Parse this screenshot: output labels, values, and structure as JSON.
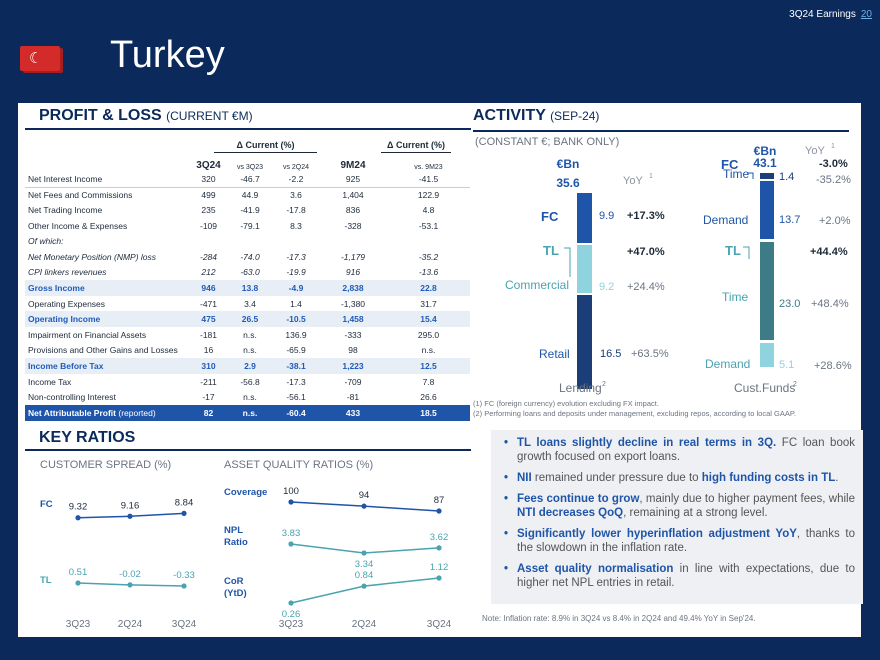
{
  "header": {
    "tag": "3Q24 Earnings",
    "page": "20",
    "title": "Turkey",
    "flag_icon": "turkey-flag-icon"
  },
  "pl": {
    "title": "PROFIT & LOSS",
    "title_sub": "(CURRENT €M)",
    "delta_label": "Δ Current (%)",
    "cols": [
      "3Q24",
      "vs 3Q23",
      "vs 2Q24",
      "9M24",
      "vs. 9M23"
    ],
    "rows": [
      {
        "label": "Net Interest Income",
        "v": [
          "320",
          "-46.7",
          "-2.2",
          "925",
          "-41.5"
        ],
        "style": ""
      },
      {
        "label": "Net Fees and Commissions",
        "v": [
          "499",
          "44.9",
          "3.6",
          "1,404",
          "122.9"
        ],
        "style": ""
      },
      {
        "label": "Net Trading Income",
        "v": [
          "235",
          "-41.9",
          "-17.8",
          "836",
          "4.8"
        ],
        "style": ""
      },
      {
        "label": "Other Income & Expenses",
        "v": [
          "-109",
          "-79.1",
          "8.3",
          "-328",
          "-53.1"
        ],
        "style": ""
      },
      {
        "label": "Of which:",
        "v": [
          "",
          "",
          "",
          "",
          ""
        ],
        "style": "it"
      },
      {
        "label": "Net Monetary Position (NMP) loss",
        "v": [
          "-284",
          "-74.0",
          "-17.3",
          "-1,179",
          "-35.2"
        ],
        "style": "it"
      },
      {
        "label": "CPI linkers revenues",
        "v": [
          "212",
          "-63.0",
          "-19.9",
          "916",
          "-13.6"
        ],
        "style": "it"
      },
      {
        "label": "Gross Income",
        "v": [
          "946",
          "13.8",
          "-4.9",
          "2,838",
          "22.8"
        ],
        "style": "hl"
      },
      {
        "label": "Operating Expenses",
        "v": [
          "-471",
          "3.4",
          "1.4",
          "-1,380",
          "31.7"
        ],
        "style": ""
      },
      {
        "label": "Operating Income",
        "v": [
          "475",
          "26.5",
          "-10.5",
          "1,458",
          "15.4"
        ],
        "style": "hl"
      },
      {
        "label": "Impairment on Financial Assets",
        "v": [
          "-181",
          "n.s.",
          "136.9",
          "-333",
          "295.0"
        ],
        "style": ""
      },
      {
        "label": "Provisions and Other Gains and Losses",
        "v": [
          "16",
          "n.s.",
          "-65.9",
          "98",
          "n.s."
        ],
        "style": ""
      },
      {
        "label": "Income Before Tax",
        "v": [
          "310",
          "2.9",
          "-38.1",
          "1,223",
          "12.5"
        ],
        "style": "hl"
      },
      {
        "label": "Income Tax",
        "v": [
          "-211",
          "-56.8",
          "-17.3",
          "-709",
          "7.8"
        ],
        "style": ""
      },
      {
        "label": "Non-controlling Interest",
        "v": [
          "-17",
          "n.s.",
          "-56.1",
          "-81",
          "26.6"
        ],
        "style": ""
      },
      {
        "label": "Net Attributable Profit",
        "label_sub": "(reported)",
        "v": [
          "82",
          "n.s.",
          "-60.4",
          "433",
          "18.5"
        ],
        "style": "dk"
      }
    ]
  },
  "activity": {
    "title": "ACTIVITY",
    "title_sub": "(SEP-24)",
    "sub": "(CONSTANT €; BANK ONLY)",
    "lending": {
      "unit": "€Bn",
      "total": "35.6",
      "yoy_label": "YoY",
      "sup": "1",
      "fc_label": "FC",
      "fc_val": "9.9",
      "fc_yoy": "+17.3%",
      "tl_label": "TL",
      "tl_yoy": "+47.0%",
      "commercial_label": "Commercial",
      "commercial_val": "9.2",
      "commercial_yoy": "+24.4%",
      "retail_label": "Retail",
      "retail_val": "16.5",
      "retail_yoy": "+63.5%",
      "caption": "Lending",
      "caption_sup": "2"
    },
    "funds": {
      "unit": "€Bn",
      "yoy_label": "YoY",
      "sup": "1",
      "fc_label": "FC",
      "fc_total": "43.1",
      "fc_yoy": "-3.0%",
      "time1_label": "Time",
      "time1_val": "1.4",
      "time1_yoy": "-35.2%",
      "demand1_label": "Demand",
      "demand1_val": "13.7",
      "demand1_yoy": "+2.0%",
      "tl_label": "TL",
      "tl_yoy": "+44.4%",
      "time2_label": "Time",
      "time2_val": "23.0",
      "time2_yoy": "+48.4%",
      "demand2_label": "Demand",
      "demand2_val": "5.1",
      "demand2_yoy": "+28.6%",
      "caption": "Cust.Funds",
      "caption_sup": "2"
    },
    "note1": "(1) FC (foreign currency) evolution excluding FX impact.",
    "note2": "(2) Performing loans and deposits under management, excluding repos, according to local GAAP."
  },
  "bullets": [
    {
      "b": "TL loans slightly decline in real terms in 3Q.",
      "t": " FC loan book growth focused on export loans."
    },
    {
      "b": "NII",
      "t": " remained under pressure due to ",
      "b2": "high funding costs in TL",
      "t2": "."
    },
    {
      "b": "Fees continue to grow",
      "t": ", mainly due to higher payment fees, while ",
      "b2": "NTI decreases QoQ",
      "t2": ", remaining at a strong level."
    },
    {
      "b": "Significantly lower hyperinflation adjustment YoY",
      "t": ", thanks to the slowdown in the inflation rate."
    },
    {
      "b": "Asset quality normalisation",
      "t": " in line with expectations, due to higher net NPL entries in retail."
    }
  ],
  "inflation_note": "Note: Inflation rate: 8.9% in 3Q24 vs 8.4% in 2Q24 and 49.4% YoY in Sep'24.",
  "kr": {
    "title": "KEY RATIOS",
    "cs_title": "CUSTOMER SPREAD (%)",
    "aq_title": "ASSET QUALITY RATIOS (%)",
    "x": [
      "3Q23",
      "2Q24",
      "3Q24"
    ],
    "fc_label": "FC",
    "fc": [
      "9.32",
      "9.16",
      "8.84"
    ],
    "tl_label": "TL",
    "tl": [
      "0.51",
      "-0.02",
      "-0.33"
    ],
    "cov_label": "Coverage",
    "cov": [
      "100",
      "94",
      "87"
    ],
    "npl_label": "NPL",
    "npl_label2": "Ratio",
    "npl": [
      "3.83",
      "3.34",
      "3.62"
    ],
    "cor_label": "CoR",
    "cor_label2": "(YtD)",
    "cor": [
      "0.26",
      "0.84",
      "1.12"
    ]
  },
  "colors": {
    "navy": "#0b2a5b",
    "blue": "#1f55a8",
    "teal": "#4aa3b0",
    "lightteal": "#8fd3de",
    "green": "#74c0a6"
  }
}
